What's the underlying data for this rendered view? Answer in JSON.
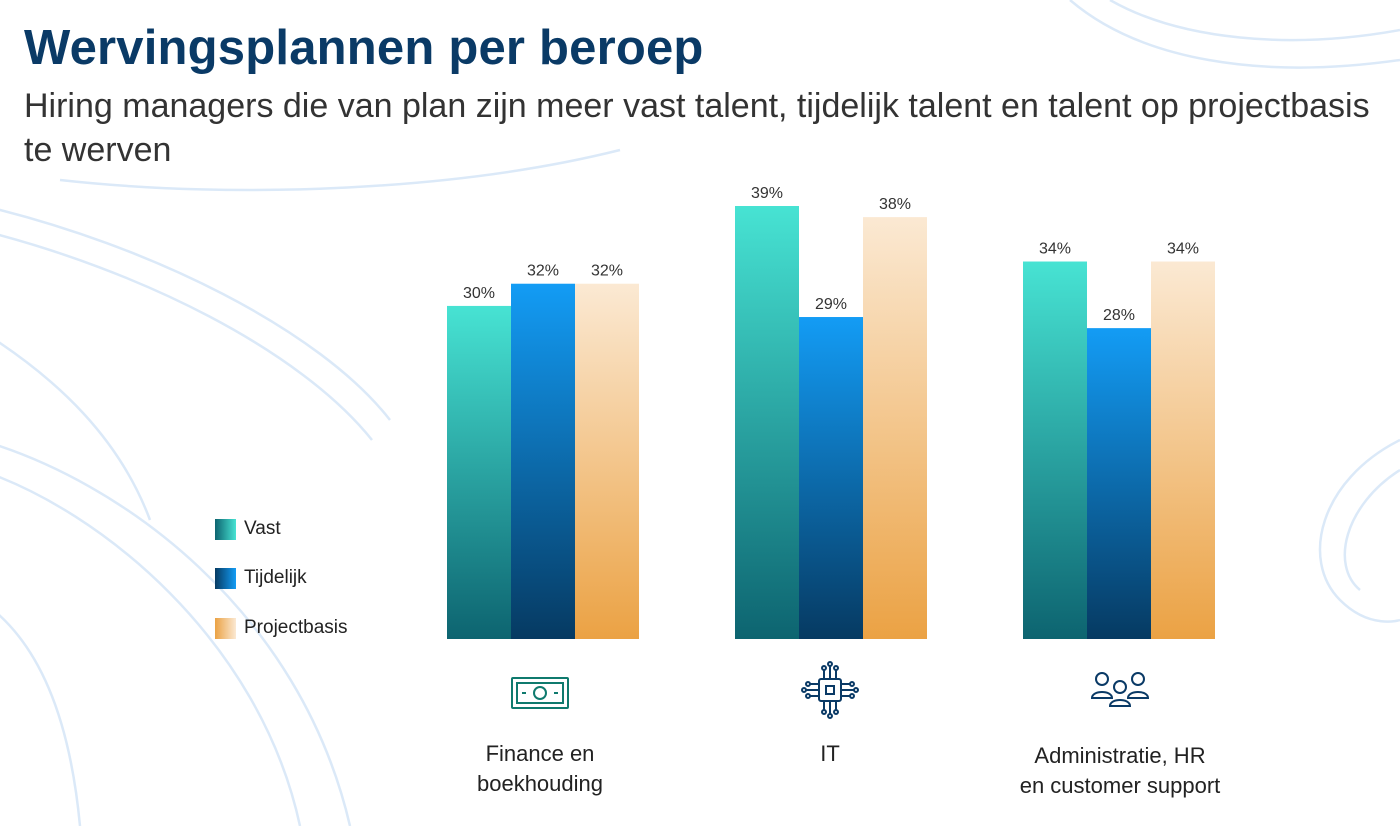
{
  "header": {
    "title": "Wervingsplannen per beroep",
    "subtitle": "Hiring managers die van plan zijn meer vast talent, tijdelijk talent en talent op projectbasis te werven"
  },
  "chart_data": {
    "type": "bar",
    "title": "Wervingsplannen per beroep",
    "subtitle": "Hiring managers die van plan zijn meer vast talent, tijdelijk talent en talent op projectbasis te werven",
    "categories": [
      "Finance en boekhouding",
      "IT",
      "Administratie, HR en customer support"
    ],
    "category_lines": [
      [
        "Finance en",
        "boekhouding"
      ],
      [
        "IT"
      ],
      [
        "Administratie, HR",
        "en customer support"
      ]
    ],
    "category_icons": [
      "banknote-icon",
      "circuit-chip-icon",
      "people-group-icon"
    ],
    "series": [
      {
        "name": "Vast",
        "values": [
          30,
          39,
          34
        ],
        "color_top": "#47e3d3",
        "color_bottom": "#0d6470"
      },
      {
        "name": "Tijdelijk",
        "values": [
          32,
          29,
          28
        ],
        "color_top": "#139cf5",
        "color_bottom": "#063a62"
      },
      {
        "name": "Projectbasis",
        "values": [
          32,
          38,
          34
        ],
        "color_top": "#fbe9d3",
        "color_bottom": "#eba244"
      }
    ],
    "value_suffix": "%",
    "ylim": [
      0,
      39
    ],
    "xlabel": "",
    "ylabel": "",
    "grid": false,
    "legend_position": "left",
    "colors": {
      "title": "#0a3a66",
      "value_label": "#333333",
      "icon": "#0f7a6e",
      "icon_blue": "#0a3a66"
    }
  }
}
